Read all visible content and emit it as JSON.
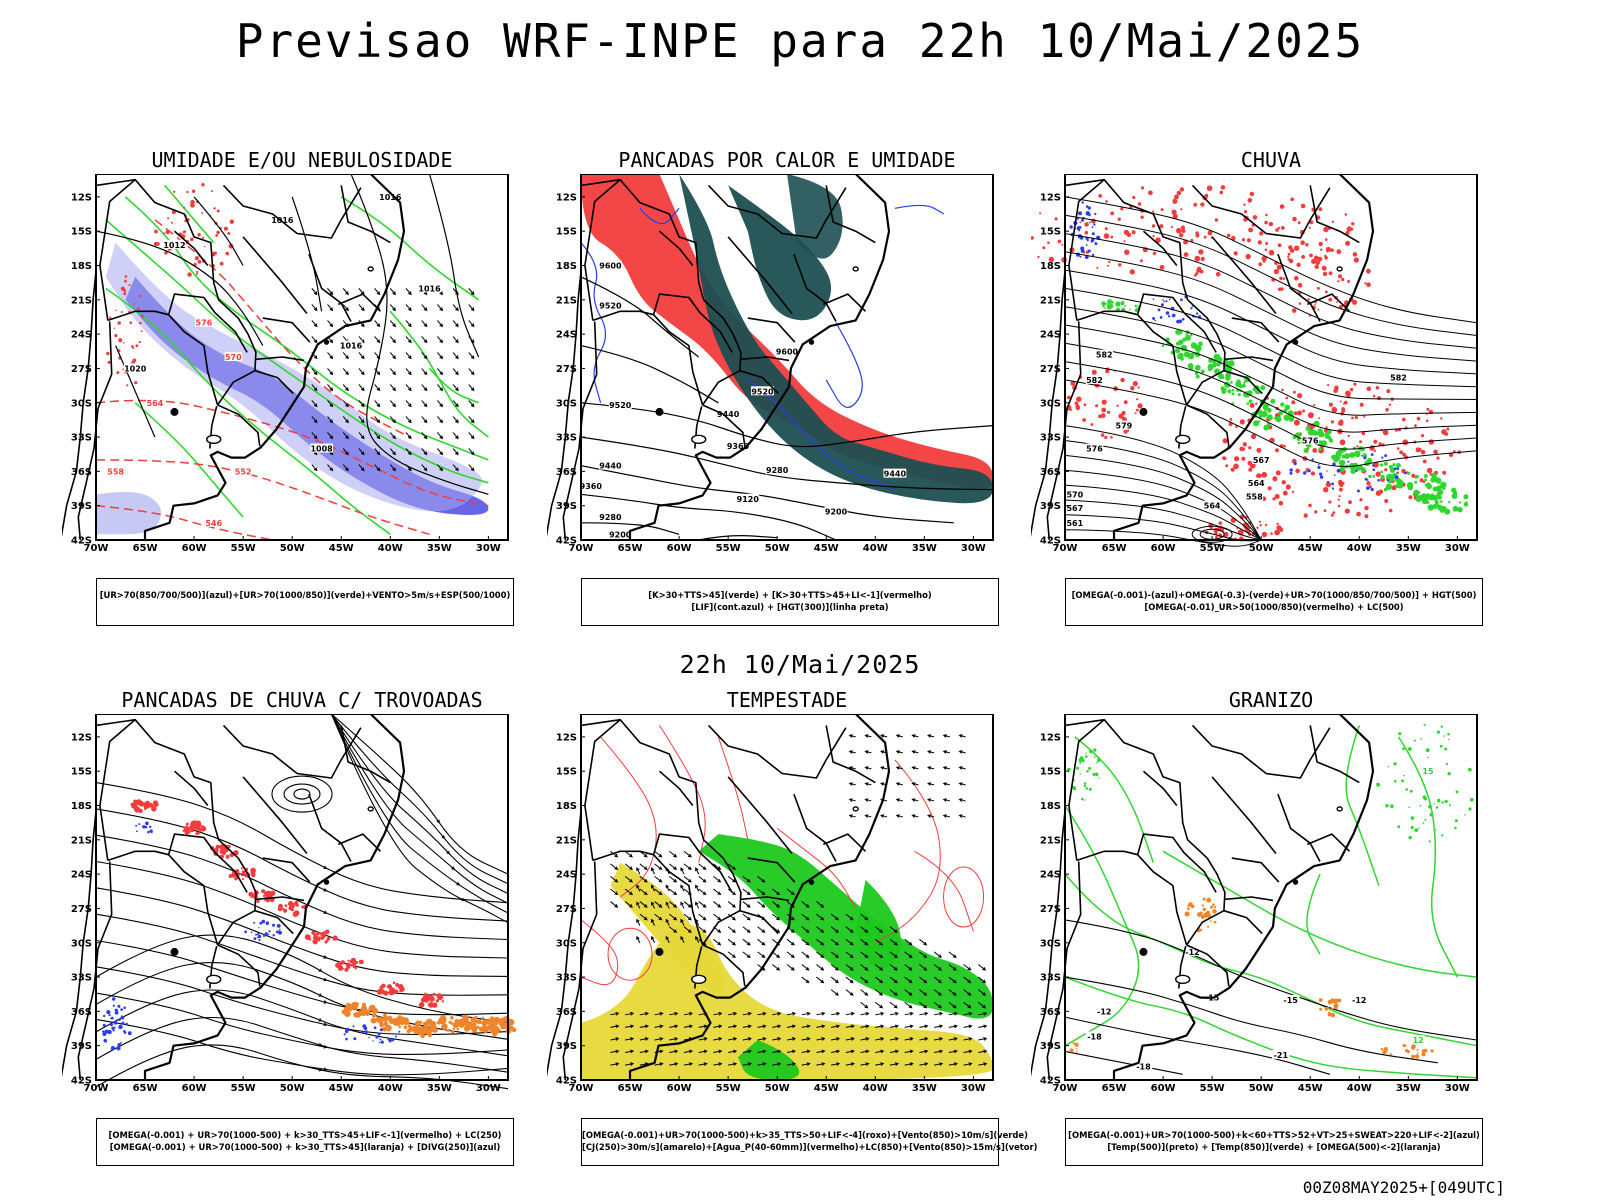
{
  "header": {
    "title": "Previsao WRF-INPE  para 22h 10/Mai/2025",
    "mid_title": "22h 10/Mai/2025",
    "footer_stamp": "00Z08MAY2025+[049UTC]"
  },
  "axes": {
    "lat_labels": [
      "12S",
      "15S",
      "18S",
      "21S",
      "24S",
      "27S",
      "30S",
      "33S",
      "36S",
      "39S",
      "42S"
    ],
    "lon_labels": [
      "70W",
      "65W",
      "60W",
      "55W",
      "50W",
      "45W",
      "40W",
      "35W",
      "30W"
    ]
  },
  "colors": {
    "umidade_media": "#3f3fe0",
    "umidade_baixa": "#2fd62f",
    "vermelho": "#f23c3c",
    "verde_escuro": "#1d4f52",
    "azul": "#2a3cf0",
    "laranja": "#f0842a",
    "amarelo": "#e6d838",
    "verde": "#1ec81e"
  },
  "panels": [
    {
      "title": "UMIDADE E/OU NEBULOSIDADE",
      "legend": [
        "[UR>70(850/700/500)](azul)+[UR>70(1000/850)](verde)+VENTO>5m/s+ESP(500/1000)"
      ],
      "contour_labels": [
        "1012",
        "1016",
        "1020",
        "1008",
        "576",
        "570",
        "564",
        "558",
        "552",
        "546"
      ]
    },
    {
      "title": "PANCADAS POR CALOR E UMIDADE",
      "legend": [
        "[K>30+TTS>45](verde) + [K>30+TTS>45+LI<-1](vermelho)",
        "[LIF](cont.azul) + [HGT(300)](linha preta)"
      ],
      "contour_labels": [
        "9600",
        "9520",
        "9440",
        "9360",
        "9280",
        "9200",
        "9120"
      ]
    },
    {
      "title": "CHUVA",
      "legend": [
        "[OMEGA(-0.001)-(azul)+OMEGA(-0.3)-(verde)+UR>70(1000/850/700/500)] + HGT(500)",
        "[OMEGA(-0.01)_UR>50(1000/850)(vermelho) + LC(500)"
      ],
      "contour_labels": [
        "582",
        "579",
        "576",
        "573",
        "570",
        "567",
        "564",
        "561",
        "558"
      ]
    },
    {
      "title": "PANCADAS DE CHUVA C/ TROVOADAS",
      "legend": [
        "[OMEGA(-0.001) + UR>70(1000-500) + k>30_TTS>45+LIF<-1](vermelho) + LC(250)",
        "[OMEGA(-0.001) + UR>70(1000-500) + k>30_TTS>45](laranja) + [DIVG(250)](azul)"
      ],
      "contour_labels": []
    },
    {
      "title": "TEMPESTADE",
      "legend": [
        "[OMEGA(-0.001)+UR>70(1000-500)+k>35_TTS>50+LIF<-4](roxo)+[Vento(850)>10m/s](verde)",
        "[CJ(250)>30m/s](amarelo)+[Agua_P(40-60mm)](vermelho)+LC(850)+[Vento(850)>15m/s](vetor)"
      ],
      "contour_labels": []
    },
    {
      "title": "GRANIZO",
      "legend": [
        "[OMEGA(-0.001)+UR>70(1000-500)+k<60+TTS>52+VT>25+SWEAT>220+LIF<-2](azul)",
        "[Temp(500)](preto) + [Temp(850)](verde) + [OMEGA(500)<-2](laranja)"
      ],
      "contour_labels": [
        "-12",
        "-15",
        "-18",
        "-21",
        "12",
        "15",
        "18"
      ]
    }
  ]
}
